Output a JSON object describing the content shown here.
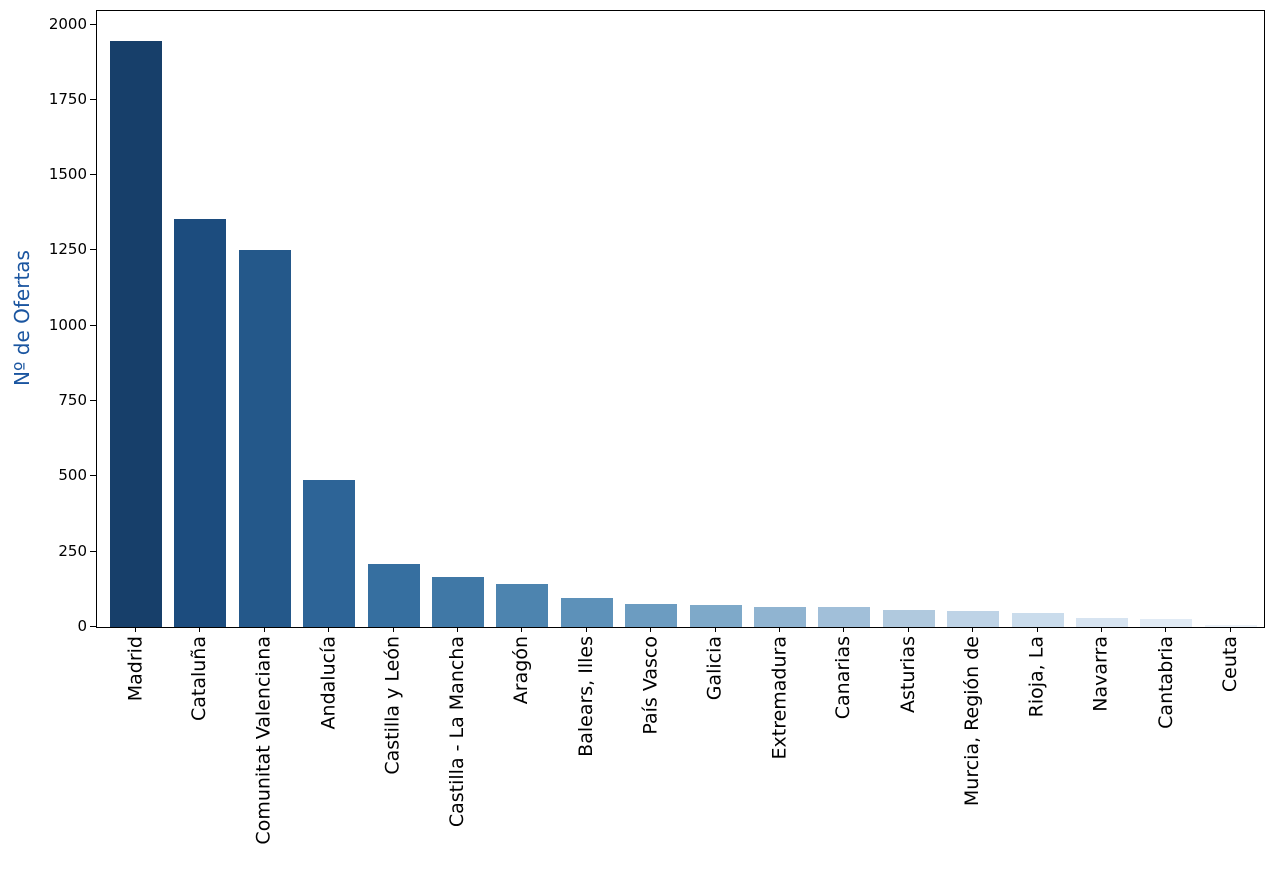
{
  "chart_data": {
    "type": "bar",
    "title": "",
    "xlabel": "",
    "ylabel": "Nº de Ofertas",
    "ylabel_color": "#1a55a0",
    "categories": [
      "Madrid",
      "Cataluña",
      "Comunitat Valenciana",
      "Andalucía",
      "Castilla y León",
      "Castilla - La Mancha",
      "Aragón",
      "Balears, Illes",
      "País Vasco",
      "Galicia",
      "Extremadura",
      "Canarias",
      "Asturias",
      "Murcia, Región de",
      "Rioja, La",
      "Navarra",
      "Cantabria",
      "Ceuta"
    ],
    "values": [
      1945,
      1355,
      1250,
      487,
      210,
      165,
      142,
      96,
      75,
      72,
      68,
      65,
      57,
      53,
      47,
      29,
      26,
      5
    ],
    "bar_colors": [
      "#173f6a",
      "#1c4c7e",
      "#24588a",
      "#2d6497",
      "#366fa0",
      "#4078a6",
      "#4d84af",
      "#5d91b9",
      "#6c9cc1",
      "#7ea9c9",
      "#90b4d1",
      "#a1bfd9",
      "#b0c9de",
      "#bed3e6",
      "#cadcec",
      "#d7e4f1",
      "#e1ebf5",
      "#eaf1f8"
    ],
    "ylim": [
      0,
      2045
    ],
    "yticks": [
      0,
      250,
      500,
      750,
      1000,
      1250,
      1500,
      1750,
      2000
    ],
    "grid": false,
    "legend": null,
    "tick_color": "#000000",
    "spine_color": "#000000"
  }
}
